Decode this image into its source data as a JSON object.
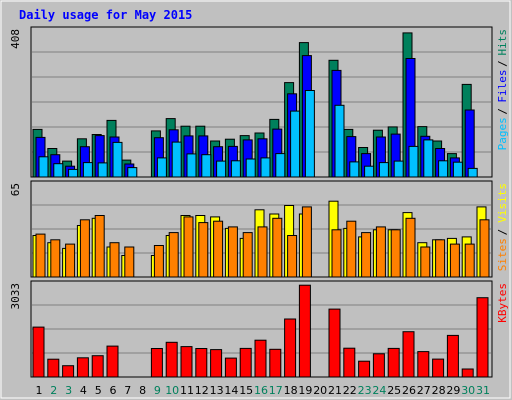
{
  "title": "Daily usage for May 2015",
  "colors": {
    "background": "#c0c0c0",
    "panel": "#c0c0c0",
    "title": "#0000ff",
    "grid": "#808080",
    "hits": "#00805c",
    "files": "#0000ff",
    "pages": "#00c0ff",
    "visits": "#ffff00",
    "sites": "#ff8000",
    "kbytes": "#ff0000",
    "weekday_label": "#000000",
    "weekend_label": "#00805c"
  },
  "chart_data": [
    {
      "type": "bar",
      "panel": "traffic",
      "ymax_label": "408",
      "ymax": 408,
      "series": [
        {
          "name": "Hits",
          "values": [
            132,
            79,
            44,
            106,
            118,
            157,
            47,
            0,
            128,
            162,
            141,
            141,
            100,
            105,
            115,
            122,
            160,
            262,
            373,
            0,
            324,
            132,
            82,
            130,
            139,
            400,
            140,
            100,
            65,
            257,
            0
          ]
        },
        {
          "name": "Files",
          "values": [
            110,
            62,
            30,
            84,
            115,
            111,
            36,
            0,
            109,
            131,
            114,
            114,
            84,
            85,
            103,
            106,
            133,
            231,
            337,
            0,
            296,
            112,
            65,
            111,
            119,
            329,
            113,
            79,
            53,
            186,
            0
          ]
        },
        {
          "name": "Pages",
          "values": [
            56,
            37,
            21,
            40,
            39,
            96,
            26,
            0,
            53,
            97,
            64,
            62,
            44,
            45,
            50,
            53,
            65,
            183,
            240,
            0,
            199,
            42,
            30,
            40,
            44,
            85,
            103,
            45,
            41,
            24,
            0
          ]
        }
      ],
      "right_labels": [
        "Pages",
        "Files",
        "Hits"
      ]
    },
    {
      "type": "bar",
      "panel": "visitors",
      "ymax_label": "65",
      "ymax": 65,
      "series": [
        {
          "name": "Visits",
          "values": [
            29,
            24,
            20,
            36,
            41,
            21,
            15,
            0,
            15,
            29,
            43,
            43,
            42,
            34,
            27,
            47,
            44,
            50,
            44,
            0,
            53,
            34,
            28,
            33,
            33,
            45,
            24,
            26,
            27,
            28,
            49
          ]
        },
        {
          "name": "Sites",
          "values": [
            30,
            26,
            23,
            40,
            43,
            24,
            21,
            0,
            22,
            31,
            42,
            38,
            39,
            35,
            31,
            35,
            41,
            29,
            49,
            0,
            33,
            39,
            31,
            35,
            33,
            41,
            21,
            26,
            23,
            23,
            40
          ]
        }
      ],
      "right_labels": [
        "Sites",
        "Visits"
      ]
    },
    {
      "type": "bar",
      "panel": "volume",
      "ymax_label": "3033",
      "ymax": 3033,
      "series": [
        {
          "name": "KBytes",
          "values": [
            1627,
            582,
            368,
            627,
            695,
            1007,
            0,
            0,
            930,
            1133,
            990,
            930,
            894,
            617,
            932,
            1200,
            905,
            1891,
            2995,
            0,
            2213,
            938,
            516,
            756,
            932,
            1477,
            827,
            584,
            1357,
            262,
            2586
          ]
        }
      ],
      "right_labels": [
        "KBytes"
      ]
    }
  ],
  "x_labels": [
    "1",
    "2",
    "3",
    "4",
    "5",
    "6",
    "7",
    "8",
    "9",
    "10",
    "11",
    "12",
    "13",
    "14",
    "15",
    "16",
    "17",
    "18",
    "19",
    "20",
    "21",
    "22",
    "23",
    "24",
    "25",
    "26",
    "27",
    "28",
    "29",
    "30",
    "31"
  ],
  "weekend_days": [
    2,
    3,
    9,
    10,
    16,
    17,
    23,
    24,
    30,
    31
  ]
}
